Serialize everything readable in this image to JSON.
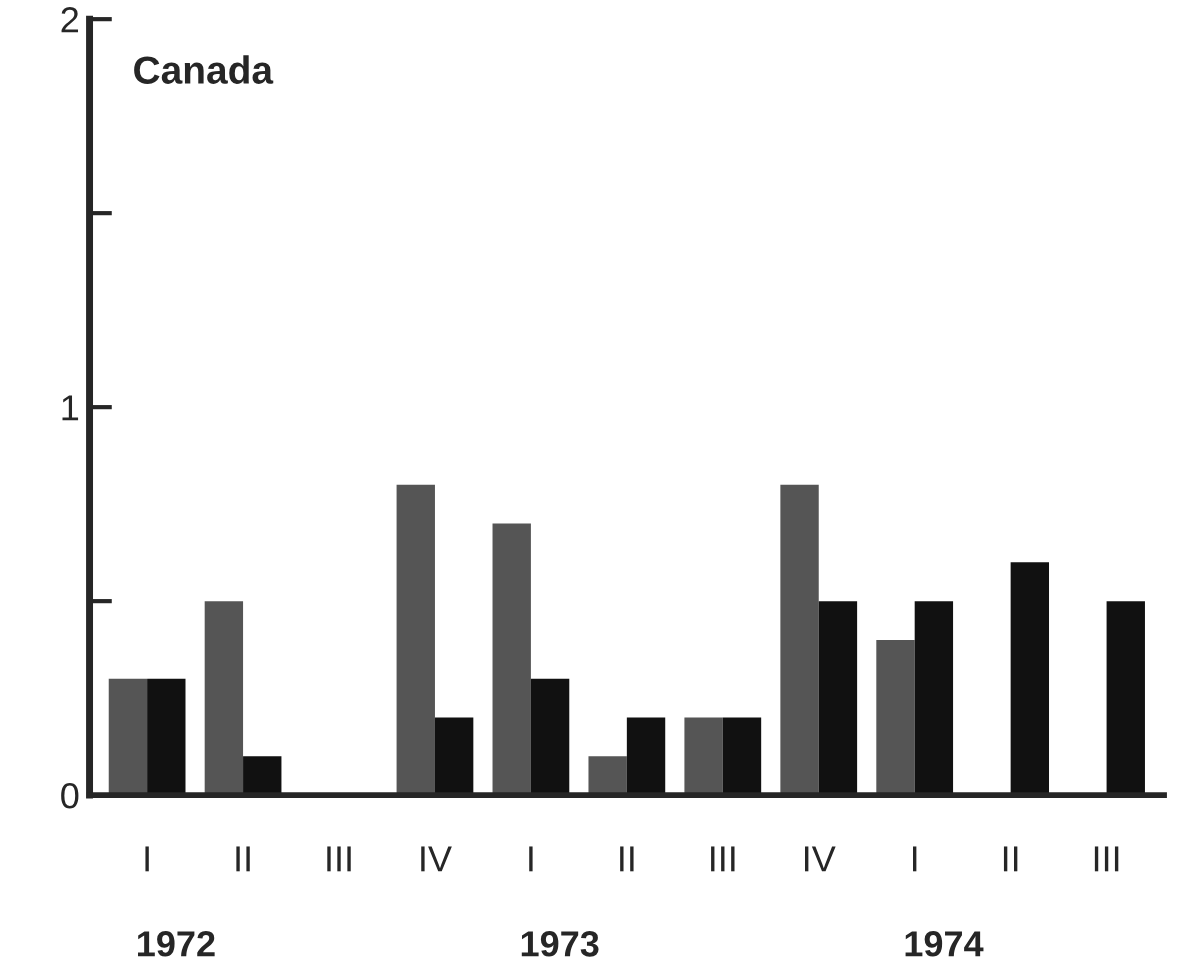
{
  "chart_data": {
    "type": "bar",
    "title": "Canada",
    "categories": [
      "I",
      "II",
      "III",
      "IV",
      "I",
      "II",
      "III",
      "IV",
      "I",
      "II",
      "III"
    ],
    "series": [
      {
        "color": "#555555",
        "values": [
          0.3,
          0.5,
          null,
          0.8,
          0.7,
          0.1,
          0.2,
          0.8,
          0.4,
          null,
          null
        ]
      },
      {
        "color": "#111111",
        "values": [
          0.3,
          0.1,
          null,
          0.2,
          0.3,
          0.2,
          0.2,
          0.5,
          0.5,
          0.6,
          0.5
        ]
      }
    ],
    "ylim": [
      0,
      2
    ],
    "yticks": [
      0,
      {
        "value": 0.5,
        "label": null
      },
      1,
      {
        "value": 1.5,
        "label": null
      },
      2
    ],
    "annotations": [
      "1972",
      "1973",
      "1974"
    ],
    "grid": false,
    "legend": false
  }
}
